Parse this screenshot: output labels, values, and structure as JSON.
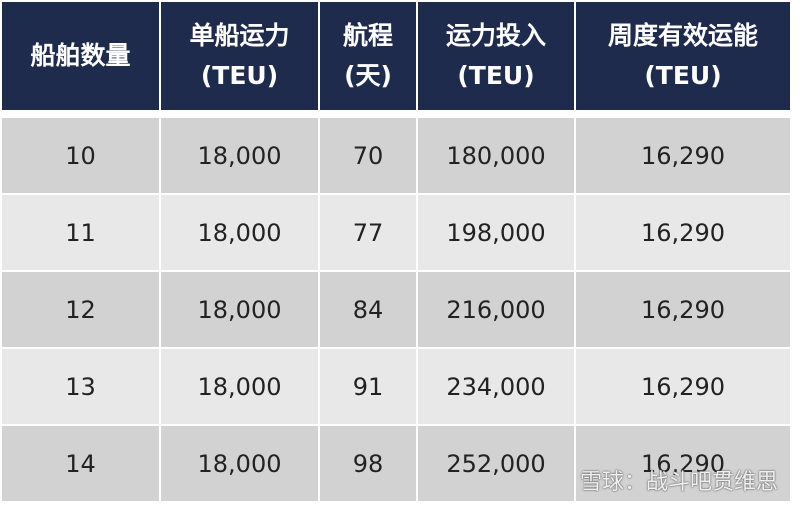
{
  "table": {
    "header": [
      [
        "船舶数量"
      ],
      [
        "单船运力",
        "(TEU)"
      ],
      [
        "航程",
        "(天)"
      ],
      [
        "运力投入",
        "(TEU)"
      ],
      [
        "周度有效运能",
        "(TEU)"
      ]
    ],
    "rows": [
      [
        "10",
        "18,000",
        "70",
        "180,000",
        "16,290"
      ],
      [
        "11",
        "18,000",
        "77",
        "198,000",
        "16,290"
      ],
      [
        "12",
        "18,000",
        "84",
        "216,000",
        "16,290"
      ],
      [
        "13",
        "18,000",
        "91",
        "234,000",
        "16,290"
      ],
      [
        "14",
        "18,000",
        "98",
        "252,000",
        "16,290"
      ]
    ]
  },
  "watermark": "雪球：战斗吧贯维思"
}
